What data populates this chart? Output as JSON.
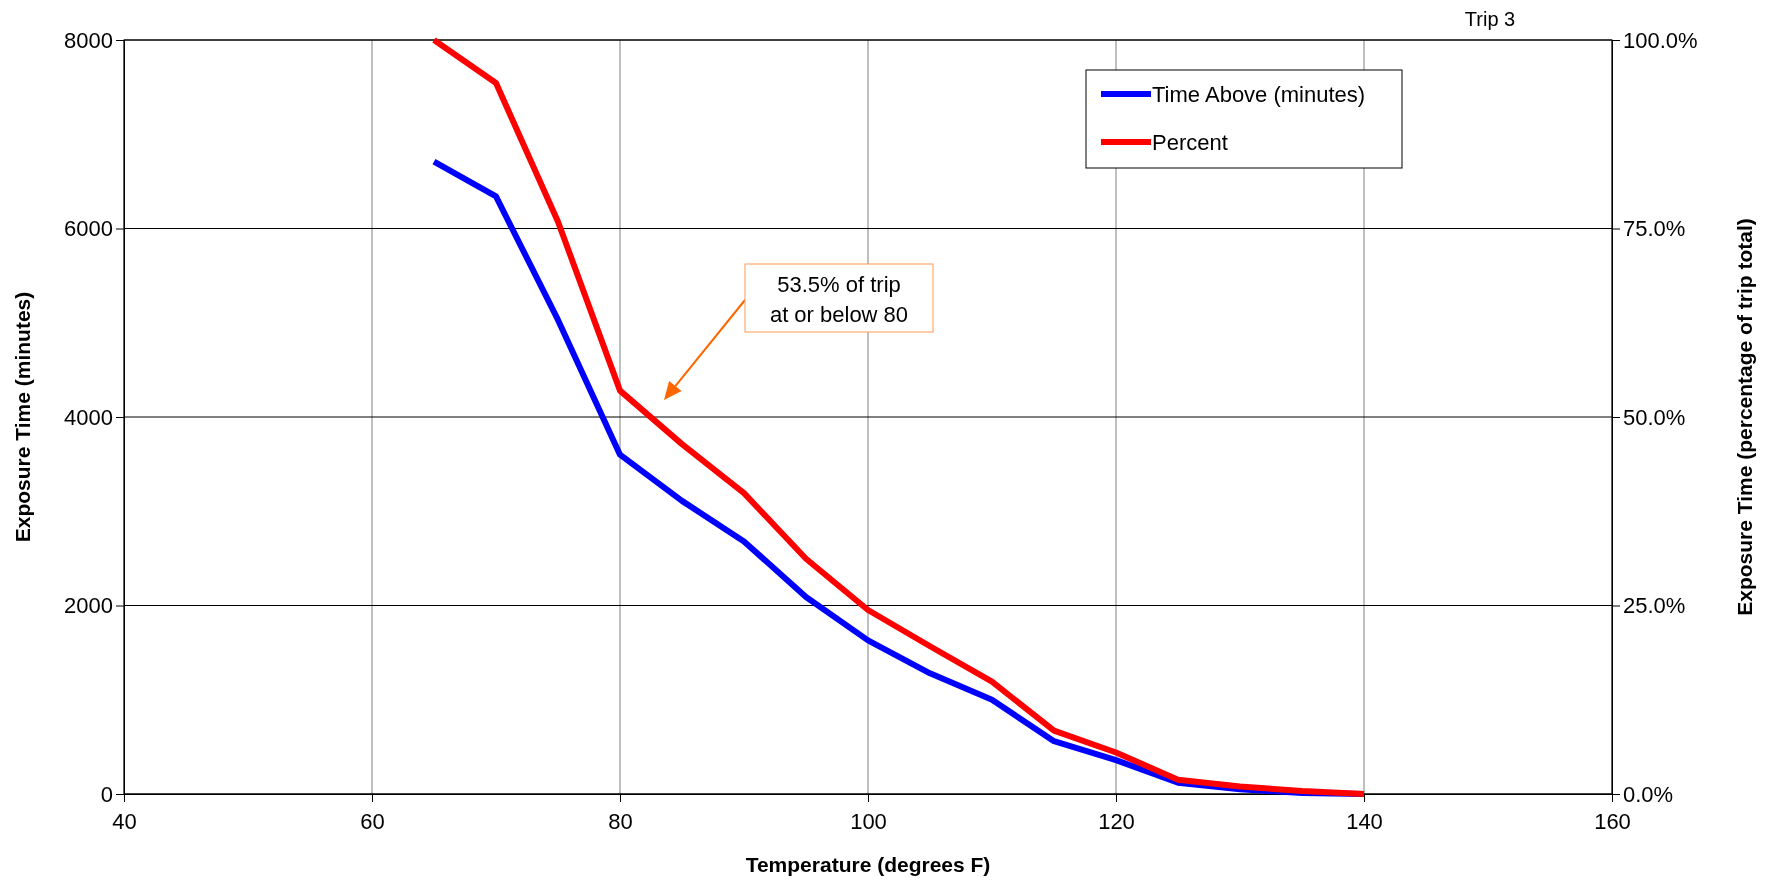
{
  "chart_data": {
    "type": "line",
    "title": "Trip 3",
    "xlabel": "Temperature (degrees F)",
    "ylabel": "Exposure Time (minutes)",
    "y2label": "Exposure Time (percentage of trip total)",
    "x": [
      65,
      70,
      75,
      80,
      85,
      90,
      95,
      100,
      105,
      110,
      115,
      120,
      125,
      130,
      135,
      140
    ],
    "series": [
      {
        "name": "Time Above (minutes)",
        "color": "#0000ff",
        "values": [
          6710,
          6340,
          5030,
          3600,
          3110,
          2680,
          2090,
          1630,
          1280,
          1000,
          560,
          360,
          120,
          50,
          10,
          0
        ]
      },
      {
        "name": "Percent",
        "color": "#ff0000",
        "axis": "y2",
        "values": [
          100,
          94.3,
          75.9,
          53.5,
          46.4,
          39.9,
          31.2,
          24.4,
          19.6,
          14.9,
          8.4,
          5.5,
          1.9,
          1.0,
          0.4,
          0
        ]
      }
    ],
    "xlim": [
      40,
      160
    ],
    "xticks": [
      40,
      60,
      80,
      100,
      120,
      140,
      160
    ],
    "ylim": [
      0,
      8000
    ],
    "yticks": [
      0,
      2000,
      4000,
      6000,
      8000
    ],
    "y2lim": [
      0,
      100
    ],
    "y2ticks": [
      {
        "value": 0,
        "label": "0.0%"
      },
      {
        "value": 25,
        "label": "25.0%"
      },
      {
        "value": 50,
        "label": "50.0%"
      },
      {
        "value": 75,
        "label": "75.0%"
      },
      {
        "value": 100,
        "label": "100.0%"
      }
    ],
    "annotations": [
      "53.5% of trip\nat or below 80"
    ],
    "grid": true,
    "legend": "top right",
    "marker": "none",
    "line_style": "solid"
  }
}
